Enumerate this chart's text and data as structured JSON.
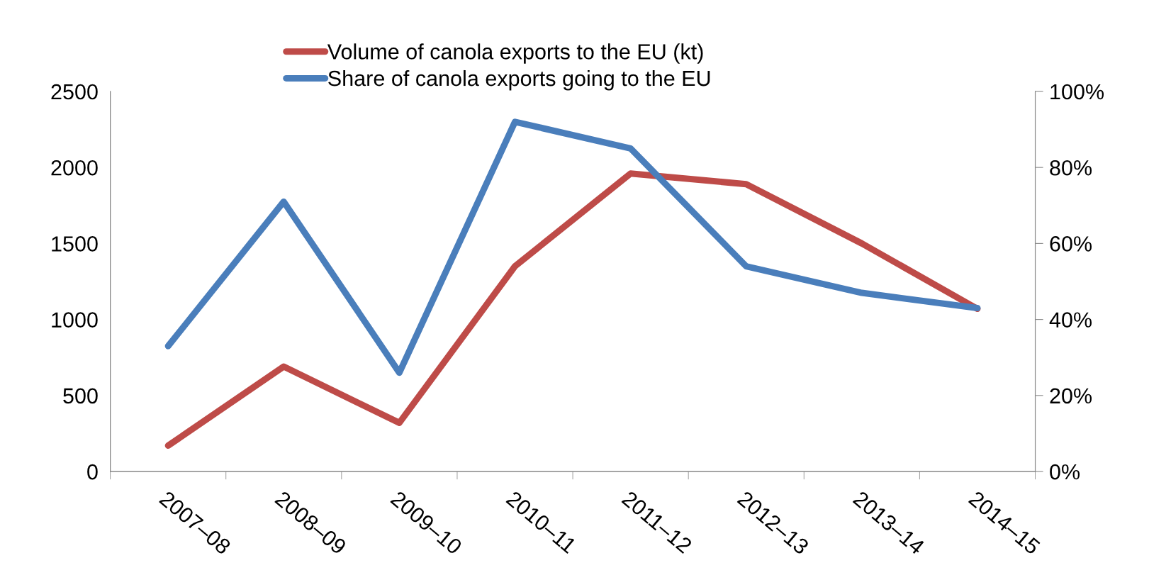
{
  "chart_data": {
    "type": "line",
    "categories": [
      "2007–08",
      "2008–09",
      "2009–10",
      "2010–11",
      "2011–12",
      "2012–13",
      "2013–14",
      "2014–15"
    ],
    "series": [
      {
        "name": "Volume of canola exports to the EU (kt)",
        "color": "#be4b48",
        "values": [
          170,
          690,
          320,
          1350,
          1960,
          1890,
          1500,
          1070
        ]
      },
      {
        "name": "Share of canola exports going to the EU",
        "color": "#4a7ebb",
        "axis": "y2",
        "values": [
          33,
          71,
          26,
          92,
          85,
          54,
          47,
          43
        ]
      }
    ],
    "ylim": [
      0,
      2500
    ],
    "yticks": [
      0,
      500,
      1000,
      1500,
      2000,
      2500
    ],
    "y2lim": [
      0,
      100
    ],
    "y2ticks": [
      {
        "value": 0,
        "label": "0%"
      },
      {
        "value": 20,
        "label": "20%"
      },
      {
        "value": 40,
        "label": "40%"
      },
      {
        "value": 60,
        "label": "60%"
      },
      {
        "value": 80,
        "label": "80%"
      },
      {
        "value": 100,
        "label": "100%"
      }
    ],
    "legend": "top",
    "grid": false,
    "marker": "none",
    "line_style": "solid"
  }
}
